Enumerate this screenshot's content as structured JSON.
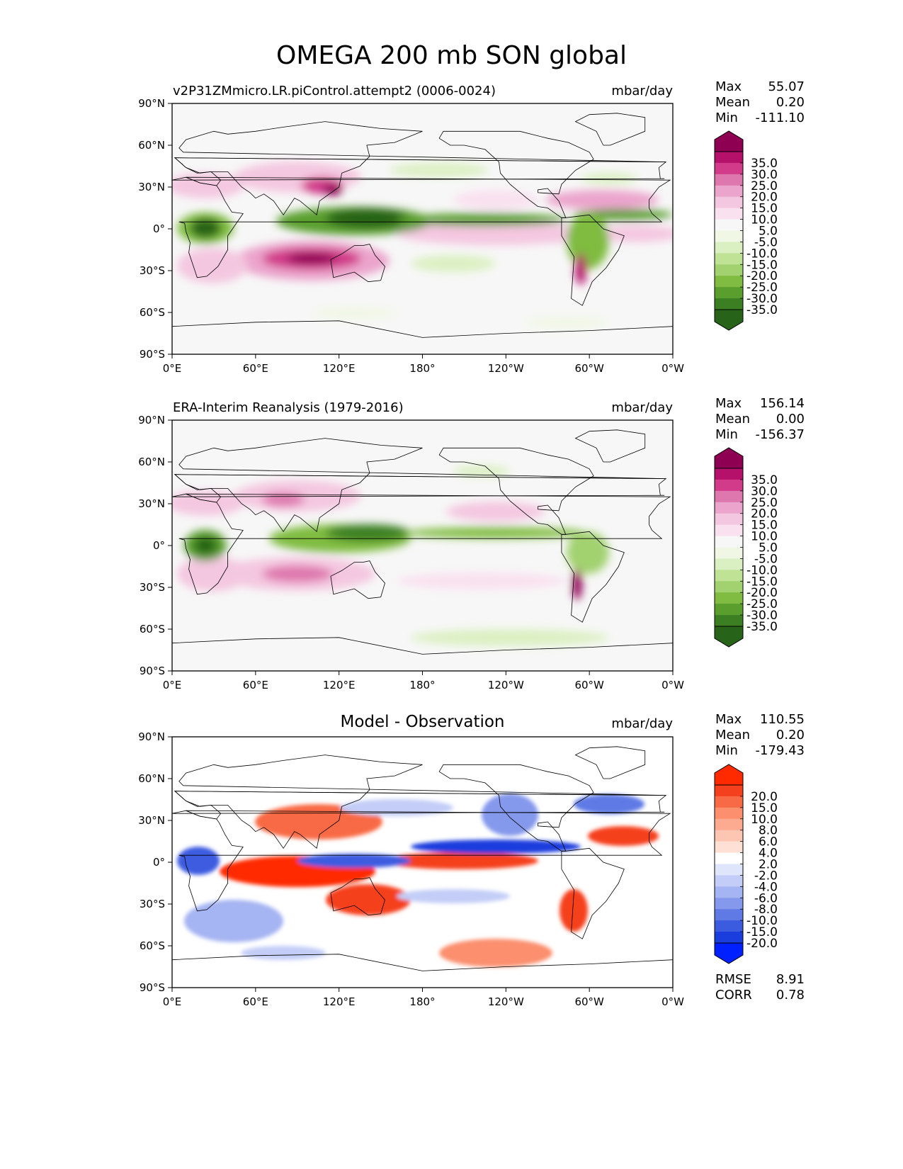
{
  "figure_title": "OMEGA 200 mb SON global",
  "chart_data": [
    {
      "type": "heatmap",
      "title": "v2P31ZMmicro.LR.piControl.attempt2 (0006-0024)",
      "units": "mbar/day",
      "xticks": [
        "0°E",
        "60°E",
        "120°E",
        "180°",
        "120°W",
        "60°W",
        "0°W"
      ],
      "yticks": [
        "90°N",
        "60°N",
        "30°N",
        "0°",
        "30°S",
        "60°S",
        "90°S"
      ],
      "stats": {
        "max_label": "Max",
        "max": "55.07",
        "mean_label": "Mean",
        "mean": "0.20",
        "min_label": "Min",
        "min": "-111.10"
      },
      "colorbar": {
        "labels": [
          "35.0",
          "30.0",
          "25.0",
          "20.0",
          "15.0",
          "10.0",
          "5.0",
          "-5.0",
          "-10.0",
          "-15.0",
          "-20.0",
          "-25.0",
          "-30.0",
          "-35.0"
        ],
        "colors": [
          "#8e0152",
          "#b5116b",
          "#d13b8a",
          "#de77ae",
          "#eba4cc",
          "#f4c7e0",
          "#f9e1ef",
          "#f7f7f7",
          "#f0f7e4",
          "#dbf0c2",
          "#bfe294",
          "#a2d16f",
          "#7fbc41",
          "#5a9f2d",
          "#3b7f22",
          "#276419"
        ]
      }
    },
    {
      "type": "heatmap",
      "title": "ERA-Interim Reanalysis (1979-2016)",
      "units": "mbar/day",
      "xticks": [
        "0°E",
        "60°E",
        "120°E",
        "180°",
        "120°W",
        "60°W",
        "0°W"
      ],
      "yticks": [
        "90°N",
        "60°N",
        "30°N",
        "0°",
        "30°S",
        "60°S",
        "90°S"
      ],
      "stats": {
        "max_label": "Max",
        "max": "156.14",
        "mean_label": "Mean",
        "mean": "0.00",
        "min_label": "Min",
        "min": "-156.37"
      },
      "colorbar": {
        "labels": [
          "35.0",
          "30.0",
          "25.0",
          "20.0",
          "15.0",
          "10.0",
          "5.0",
          "-5.0",
          "-10.0",
          "-15.0",
          "-20.0",
          "-25.0",
          "-30.0",
          "-35.0"
        ],
        "colors": [
          "#8e0152",
          "#b5116b",
          "#d13b8a",
          "#de77ae",
          "#eba4cc",
          "#f4c7e0",
          "#f9e1ef",
          "#f7f7f7",
          "#f0f7e4",
          "#dbf0c2",
          "#bfe294",
          "#a2d16f",
          "#7fbc41",
          "#5a9f2d",
          "#3b7f22",
          "#276419"
        ]
      }
    },
    {
      "type": "heatmap",
      "title": "Model - Observation",
      "units": "mbar/day",
      "xticks": [
        "0°E",
        "60°E",
        "120°E",
        "180°",
        "120°W",
        "60°W",
        "0°W"
      ],
      "yticks": [
        "90°N",
        "60°N",
        "30°N",
        "0°",
        "30°S",
        "60°S",
        "90°S"
      ],
      "stats": {
        "max_label": "Max",
        "max": "110.55",
        "mean_label": "Mean",
        "mean": "0.20",
        "min_label": "Min",
        "min": "-179.43"
      },
      "extra_stats": {
        "rmse_label": "RMSE",
        "rmse": "8.91",
        "corr_label": "CORR",
        "corr": "0.78"
      },
      "colorbar": {
        "labels": [
          "20.0",
          "15.0",
          "10.0",
          "8.0",
          "6.0",
          "4.0",
          "2.0",
          "-2.0",
          "-4.0",
          "-6.0",
          "-8.0",
          "-10.0",
          "-15.0",
          "-20.0"
        ],
        "colors": [
          "#ff2a00",
          "#f5401e",
          "#f86a45",
          "#fb8f6e",
          "#fcab90",
          "#fdc6b2",
          "#fee0d4",
          "#ffffff",
          "#dfe5fb",
          "#c3cdf7",
          "#a5b4f2",
          "#8599ec",
          "#5f7ae5",
          "#3c5ce0",
          "#1a3ddd",
          "#0020ff"
        ]
      }
    }
  ]
}
